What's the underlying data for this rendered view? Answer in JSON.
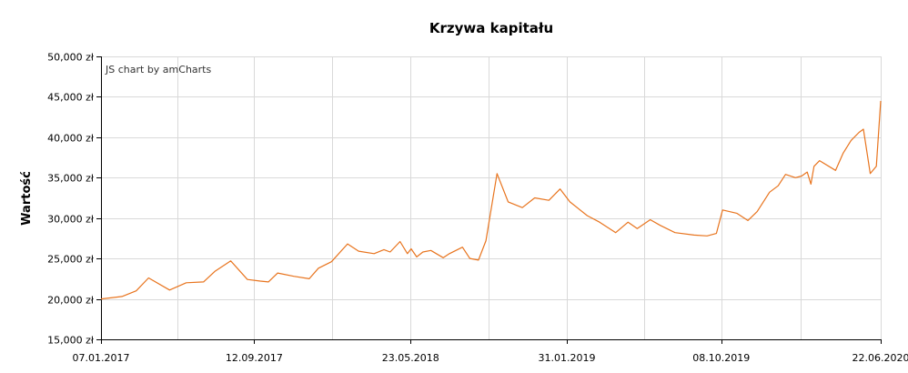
{
  "chart_data": {
    "type": "line",
    "title": "Krzywa kapitału",
    "ylabel": "Wartość",
    "xlabel": "",
    "credit": "JS chart by amCharts",
    "ylim": [
      15000,
      50000
    ],
    "xlim": [
      "2017-01-07",
      "2020-06-22"
    ],
    "y_ticks": [
      15000,
      20000,
      25000,
      30000,
      35000,
      40000,
      45000,
      50000
    ],
    "y_tick_labels": [
      "15,000 zł",
      "20,000 zł",
      "25,000 zł",
      "30,000 zł",
      "35,000 zł",
      "40,000 zł",
      "45,000 zł",
      "50,000 zł"
    ],
    "x_ticks": [
      "2017-01-07",
      "2017-09-12",
      "2018-05-23",
      "2019-01-31",
      "2019-10-08",
      "2020-06-22"
    ],
    "x_tick_labels": [
      "07.01.2017",
      "12.09.2017",
      "23.05.2018",
      "31.01.2019",
      "08.10.2019",
      "22.06.2020"
    ],
    "grid": true,
    "colors": {
      "line": "#e8741e",
      "grid": "#d9d9d9"
    },
    "series": [
      {
        "x": [
          "2017-01-07",
          "2017-02-10",
          "2017-03-05",
          "2017-03-25",
          "2017-04-28",
          "2017-05-25",
          "2017-06-22",
          "2017-07-10",
          "2017-08-05",
          "2017-09-01",
          "2017-09-22",
          "2017-10-05",
          "2017-10-20",
          "2017-11-15",
          "2017-12-10",
          "2017-12-25",
          "2018-01-15",
          "2018-02-10",
          "2018-02-28",
          "2018-03-25",
          "2018-04-10",
          "2018-04-20",
          "2018-05-06",
          "2018-05-18",
          "2018-05-24",
          "2018-06-02",
          "2018-06-12",
          "2018-06-25",
          "2018-07-15",
          "2018-07-25",
          "2018-08-15",
          "2018-08-27",
          "2018-09-10",
          "2018-09-22",
          "2018-10-10",
          "2018-10-28",
          "2018-11-20",
          "2018-12-10",
          "2019-01-02",
          "2019-01-20",
          "2019-02-05",
          "2019-03-05",
          "2019-03-25",
          "2019-04-20",
          "2019-05-10",
          "2019-05-25",
          "2019-06-15",
          "2019-07-01",
          "2019-07-25",
          "2019-08-25",
          "2019-09-15",
          "2019-09-30",
          "2019-10-10",
          "2019-11-02",
          "2019-11-20",
          "2019-12-05",
          "2019-12-25",
          "2020-01-08",
          "2020-01-20",
          "2020-02-05",
          "2020-02-15",
          "2020-02-24",
          "2020-03-01",
          "2020-03-06",
          "2020-03-15",
          "2020-04-10",
          "2020-04-22",
          "2020-05-05",
          "2020-05-18",
          "2020-05-25",
          "2020-06-05",
          "2020-06-15",
          "2020-06-22"
        ],
        "values": [
          20000,
          20300,
          21000,
          22600,
          21100,
          22000,
          22100,
          23400,
          24700,
          22400,
          22200,
          22100,
          23200,
          22800,
          22500,
          23800,
          24600,
          26800,
          25900,
          25600,
          26100,
          25800,
          27100,
          25600,
          26200,
          25200,
          25800,
          26000,
          25100,
          25600,
          26400,
          25000,
          24800,
          27200,
          35500,
          32000,
          31300,
          32500,
          32200,
          33600,
          32000,
          30300,
          29500,
          28200,
          29500,
          28700,
          29800,
          29100,
          28200,
          27900,
          27800,
          28100,
          31000,
          30600,
          29700,
          30800,
          33200,
          34000,
          35400,
          35000,
          35200,
          35700,
          34200,
          36400,
          37100,
          35900,
          38000,
          39600,
          40600,
          41000,
          35500,
          36400,
          44500
        ]
      }
    ]
  }
}
